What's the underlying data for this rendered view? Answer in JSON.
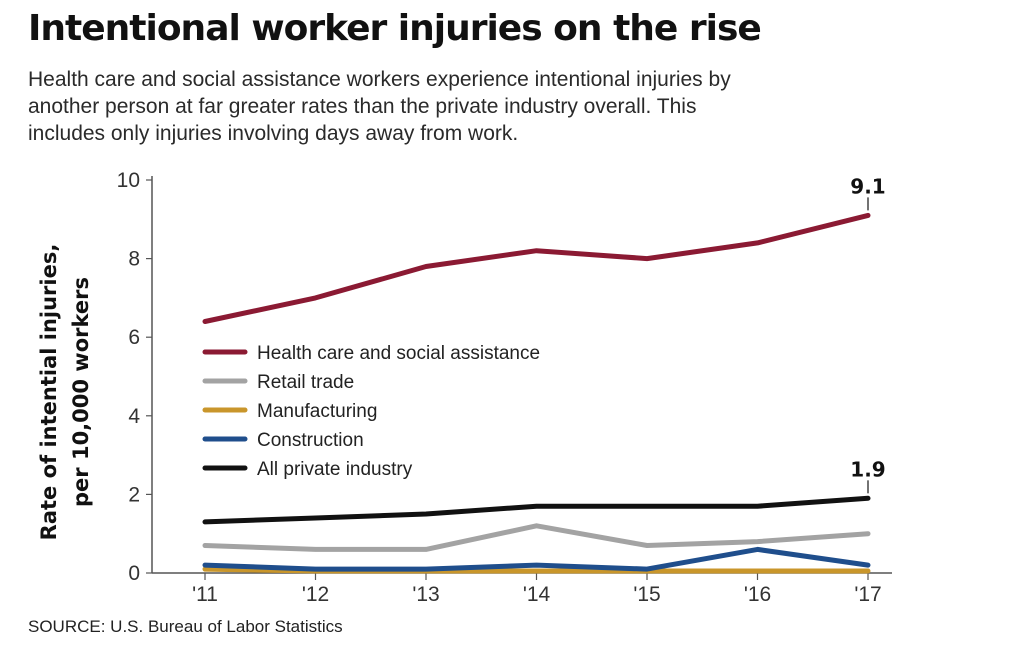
{
  "title": "Intentional worker injuries on the rise",
  "subtitle_lines": [
    "Health care and social assistance workers experience intentional injuries by",
    "another person at far greater rates than the private industry overall. This",
    "includes only injuries involving days away from work."
  ],
  "source": "SOURCE: U.S. Bureau of Labor Statistics",
  "chart_data": {
    "type": "line",
    "title": "Intentional worker injuries on the rise",
    "xlabel": "",
    "ylabel_lines": [
      "Rate of intential injuries,",
      "per 10,000 workers"
    ],
    "x": [
      "'11",
      "'12",
      "'13",
      "'14",
      "'15",
      "'16",
      "'17"
    ],
    "ylim": [
      0,
      10
    ],
    "yticks": [
      0,
      2,
      4,
      6,
      8,
      10
    ],
    "grid": false,
    "legend_position": "center-left",
    "series": [
      {
        "name": "Health care and social assistance",
        "color": "#8b1a33",
        "values": [
          6.4,
          7.0,
          7.8,
          8.2,
          8.0,
          8.4,
          9.1
        ]
      },
      {
        "name": "Retail trade",
        "color": "#a3a3a3",
        "values": [
          0.7,
          0.6,
          0.6,
          1.2,
          0.7,
          0.8,
          1.0
        ]
      },
      {
        "name": "Manufacturing",
        "color": "#c9962b",
        "values": [
          0.1,
          0.05,
          0.05,
          0.05,
          0.05,
          0.05,
          0.05
        ]
      },
      {
        "name": "Construction",
        "color": "#1f4e8c",
        "values": [
          0.2,
          0.1,
          0.1,
          0.2,
          0.1,
          0.6,
          0.2
        ]
      },
      {
        "name": "All private industry",
        "color": "#111111",
        "values": [
          1.3,
          1.4,
          1.5,
          1.7,
          1.7,
          1.7,
          1.9
        ]
      }
    ],
    "annotations": [
      {
        "text": "9.1",
        "series": "Health care and social assistance",
        "x": "'17",
        "y": 9.1
      },
      {
        "text": "1.9",
        "series": "All private industry",
        "x": "'17",
        "y": 1.9
      }
    ]
  }
}
